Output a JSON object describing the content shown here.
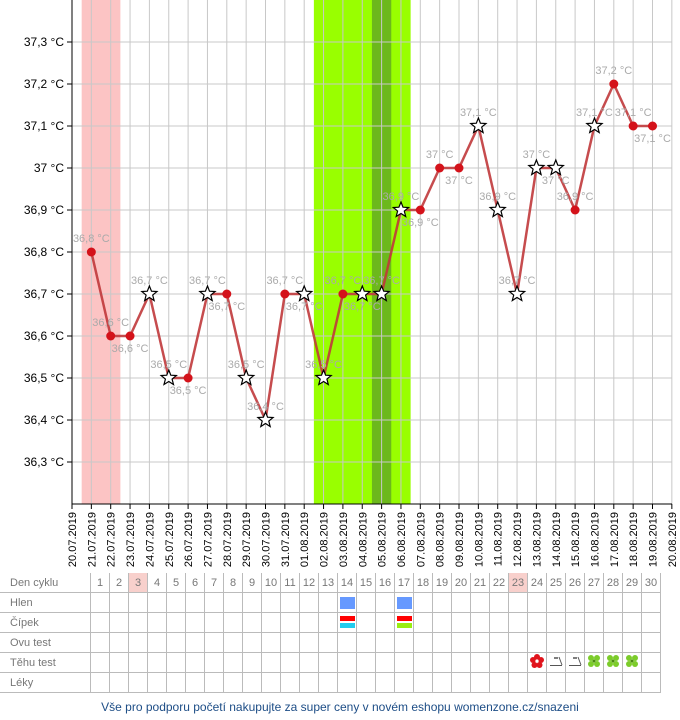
{
  "chart_data": {
    "type": "line",
    "ylim": [
      36.2,
      37.4
    ],
    "yticks": [
      "36,3 °C",
      "36,4 °C",
      "36,5 °C",
      "36,6 °C",
      "36,7 °C",
      "36,8 °C",
      "36,9 °C",
      "37 °C",
      "37,1 °C",
      "37,2 °C",
      "37,3 °C"
    ],
    "ytick_values": [
      36.3,
      36.4,
      36.5,
      36.6,
      36.7,
      36.8,
      36.9,
      37.0,
      37.1,
      37.2,
      37.3
    ],
    "x": [
      "20.07.2019",
      "21.07.2019",
      "22.07.2019",
      "23.07.2019",
      "24.07.2019",
      "25.07.2019",
      "26.07.2019",
      "27.07.2019",
      "28.07.2019",
      "29.07.2019",
      "30.07.2019",
      "31.07.2019",
      "01.08.2019",
      "02.08.2019",
      "03.08.2019",
      "04.08.2019",
      "05.08.2019",
      "06.08.2019",
      "07.08.2019",
      "08.08.2019",
      "09.08.2019",
      "10.08.2019",
      "11.08.2019",
      "12.08.2019",
      "13.08.2019",
      "14.08.2019",
      "15.08.2019",
      "16.08.2019",
      "17.08.2019",
      "18.08.2019",
      "19.08.2019",
      "20.08.2019"
    ],
    "grid": true,
    "series": [
      {
        "color": "#c0393b",
        "points": [
          {
            "date": "21.07.2019",
            "value": 36.8,
            "label": "36,8 °C",
            "marker": "dot"
          },
          {
            "date": "22.07.2019",
            "value": 36.6,
            "label": "36,6 °C",
            "marker": "dot"
          },
          {
            "date": "23.07.2019",
            "value": 36.6,
            "label": "36,6 °C",
            "marker": "dot"
          },
          {
            "date": "24.07.2019",
            "value": 36.7,
            "label": "36,7 °C",
            "marker": "star"
          },
          {
            "date": "25.07.2019",
            "value": 36.5,
            "label": "36,5 °C",
            "marker": "star"
          },
          {
            "date": "26.07.2019",
            "value": 36.5,
            "label": "36,5 °C",
            "marker": "dot"
          },
          {
            "date": "27.07.2019",
            "value": 36.7,
            "label": "36,7 °C",
            "marker": "star"
          },
          {
            "date": "28.07.2019",
            "value": 36.7,
            "label": "36,7 °C",
            "marker": "dot"
          },
          {
            "date": "29.07.2019",
            "value": 36.5,
            "label": "36,5 °C",
            "marker": "star"
          },
          {
            "date": "30.07.2019",
            "value": 36.4,
            "label": "36,4 °C",
            "marker": "star"
          },
          {
            "date": "31.07.2019",
            "value": 36.7,
            "label": "36,7 °C",
            "marker": "dot"
          },
          {
            "date": "01.08.2019",
            "value": 36.7,
            "label": "36,7 °C",
            "marker": "star"
          },
          {
            "date": "02.08.2019",
            "value": 36.5,
            "label": "36,5 °C",
            "marker": "star"
          },
          {
            "date": "03.08.2019",
            "value": 36.7,
            "label": "36,7 °C",
            "marker": "dot"
          },
          {
            "date": "04.08.2019",
            "value": 36.7,
            "label": "36,7 °C",
            "marker": "star"
          },
          {
            "date": "05.08.2019",
            "value": 36.7,
            "label": "36,7 °C",
            "marker": "star"
          },
          {
            "date": "06.08.2019",
            "value": 36.9,
            "label": "36,9 °C",
            "marker": "star"
          },
          {
            "date": "07.08.2019",
            "value": 36.9,
            "label": "36,9 °C",
            "marker": "dot"
          },
          {
            "date": "08.08.2019",
            "value": 37.0,
            "label": "37 °C",
            "marker": "dot"
          },
          {
            "date": "09.08.2019",
            "value": 37.0,
            "label": "37 °C",
            "marker": "dot"
          },
          {
            "date": "10.08.2019",
            "value": 37.1,
            "label": "37,1 °C",
            "marker": "star"
          },
          {
            "date": "11.08.2019",
            "value": 36.9,
            "label": "36,9 °C",
            "marker": "star"
          },
          {
            "date": "12.08.2019",
            "value": 36.7,
            "label": "36,7 °C",
            "marker": "star"
          },
          {
            "date": "13.08.2019",
            "value": 37.0,
            "label": "37 °C",
            "marker": "star"
          },
          {
            "date": "14.08.2019",
            "value": 37.0,
            "label": "37 °C",
            "marker": "star"
          },
          {
            "date": "15.08.2019",
            "value": 36.9,
            "label": "36,9 °C",
            "marker": "dot"
          },
          {
            "date": "16.08.2019",
            "value": 37.1,
            "label": "37,1 °C",
            "marker": "star"
          },
          {
            "date": "17.08.2019",
            "value": 37.2,
            "label": "37,2 °C",
            "marker": "dot"
          },
          {
            "date": "18.08.2019",
            "value": 37.1,
            "label": "37,1 °C",
            "marker": "dot"
          },
          {
            "date": "19.08.2019",
            "value": 37.1,
            "label": "37,1 °C",
            "marker": "dot"
          }
        ]
      }
    ],
    "bands": [
      {
        "from": "21.07.2019",
        "to": "22.07.2019",
        "color": "#fcc4c4"
      },
      {
        "from": "02.08.2019",
        "to": "06.08.2019",
        "color": "#99ff00"
      },
      {
        "from": "05.08.2019",
        "to": "05.08.2019",
        "color": "#6cb81c"
      }
    ]
  },
  "calendar": {
    "rows": [
      "Den cyklu",
      "Hlen",
      "Čípek",
      "Ovu test",
      "Těhu test",
      "Léky"
    ],
    "days": [
      "1",
      "2",
      "3",
      "4",
      "5",
      "6",
      "7",
      "8",
      "9",
      "10",
      "11",
      "12",
      "13",
      "14",
      "15",
      "16",
      "17",
      "18",
      "19",
      "20",
      "21",
      "22",
      "23",
      "24",
      "25",
      "26",
      "27",
      "28",
      "29",
      "30"
    ],
    "highlighted_days": [
      "3",
      "23"
    ],
    "hlen": [
      {
        "day": "14",
        "color": "#6699ff"
      },
      {
        "day": "17",
        "color": "#6699ff"
      }
    ],
    "cipek": [
      {
        "day": "14",
        "colors": [
          "#ff0000",
          "#22ccee"
        ]
      },
      {
        "day": "17",
        "colors": [
          "#ff0000",
          "#99ee11"
        ]
      }
    ],
    "tehu_test": [
      {
        "day": "24",
        "icon": "red-flower-icon"
      },
      {
        "day": "25",
        "icon": "dots-icon"
      },
      {
        "day": "26",
        "icon": "dots-icon"
      },
      {
        "day": "27",
        "icon": "green-clover-icon"
      },
      {
        "day": "28",
        "icon": "green-clover-icon"
      },
      {
        "day": "29",
        "icon": "green-clover-icon"
      }
    ]
  },
  "footer": {
    "text": "Vše pro podporu početí nakupujte za super ceny v novém eshopu womenzone.cz/snazeni"
  }
}
